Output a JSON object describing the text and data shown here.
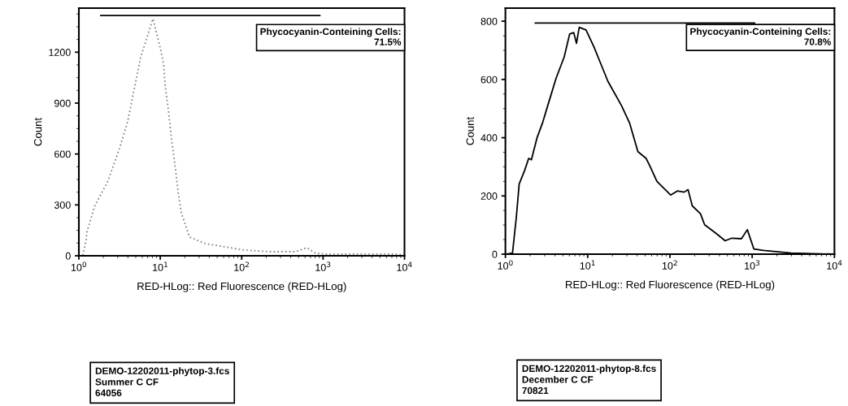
{
  "chart_data": [
    {
      "type": "line",
      "ylabel": "Count",
      "xlabel": "RED-HLog:: Red Fluorescence (RED-HLog)",
      "log": "x",
      "xlim": [
        1,
        10000
      ],
      "ylim": [
        0,
        1460
      ],
      "xticks": [
        {
          "value": 1,
          "label": "10$^{0}$"
        },
        {
          "value": 10,
          "label": "10$^{1}$"
        },
        {
          "value": 100,
          "label": "10$^{2}$"
        },
        {
          "value": 1000,
          "label": "10$^{3}$"
        },
        {
          "value": 10000,
          "label": "10$^{4}$"
        }
      ],
      "yticks": [
        0,
        300,
        600,
        900,
        1200
      ],
      "grid": false,
      "legend": false,
      "series": [
        {
          "color": "#888888",
          "line_style": "dotted",
          "x": [
            1.12,
            1.23,
            1.26,
            1.58,
            2.24,
            3.16,
            3.98,
            5.75,
            7.08,
            8.13,
            10,
            11.0,
            11.5,
            12.6,
            13.5,
            15.8,
            16.6,
            18.2,
            20.4,
            22.9,
            35.5,
            107,
            229,
            457,
            631,
            813,
            1072,
            2290,
            7240,
            9800
          ],
          "values": [
            2,
            96,
            144,
            298,
            432,
            634,
            792,
            1171,
            1306,
            1397,
            1224,
            1128,
            999,
            856,
            720,
            466,
            374,
            250,
            182,
            110,
            72,
            34,
            24,
            24,
            48,
            14,
            10,
            10,
            10,
            5
          ]
        },
        {
          "color": "#000000",
          "line_style": "solid",
          "x": [
            1.86,
            912
          ],
          "values": [
            1416,
            1416
          ]
        }
      ],
      "annotations": [
        "Phycocyanin-Conteining Cells:\n71.5%",
        "DEMO-12202011-phytop-3.fcs\nSummer C CF\n64056"
      ]
    },
    {
      "type": "line",
      "ylabel": "Count",
      "xlabel": "RED-HLog:: Red Fluorescence (RED-HLog)",
      "log": "x",
      "xlim": [
        1,
        10000
      ],
      "ylim": [
        0,
        845
      ],
      "xticks": [
        {
          "value": 1,
          "label": "10$^{0}$"
        },
        {
          "value": 10,
          "label": "10$^{1}$"
        },
        {
          "value": 100,
          "label": "10$^{2}$"
        },
        {
          "value": 1000,
          "label": "10$^{3}$"
        },
        {
          "value": 10000,
          "label": "10$^{4}$"
        }
      ],
      "yticks": [
        0,
        200,
        400,
        600,
        800
      ],
      "grid": false,
      "legend": false,
      "series": [
        {
          "color": "#000000",
          "line_style": "solid",
          "x": [
            1.04,
            1.22,
            1.36,
            1.47,
            1.71,
            1.92,
            2.07,
            2.42,
            2.82,
            3.27,
            4.12,
            5.18,
            6.04,
            6.77,
            7.31,
            7.9,
            9.55,
            12.0,
            14.0,
            17.6,
            25.8,
            32.4,
            40.8,
            51.3,
            57.5,
            69.5,
            102,
            123,
            149,
            166,
            187,
            235,
            264,
            373,
            469,
            565,
            741,
            873,
            1047,
            1370,
            2960,
            9800
          ],
          "values": [
            0,
            4,
            129,
            241,
            287,
            329,
            324,
            399,
            450,
            510,
            603,
            677,
            756,
            761,
            724,
            779,
            770,
            710,
            663,
            594,
            510,
            450,
            352,
            329,
            301,
            250,
            203,
            217,
            213,
            222,
            166,
            139,
            101,
            69,
            46,
            55,
            53,
            84,
            18,
            13,
            4,
            0
          ]
        },
        {
          "color": "#000000",
          "line_style": "solid",
          "x": [
            2.31,
            1070
          ],
          "values": [
            794,
            794
          ]
        }
      ],
      "annotations": [
        "Phycocyanin-Conteining Cells:\n70.8%",
        "DEMO-12202011-phytop-8.fcs\nDecember C CF\n70821"
      ]
    }
  ]
}
